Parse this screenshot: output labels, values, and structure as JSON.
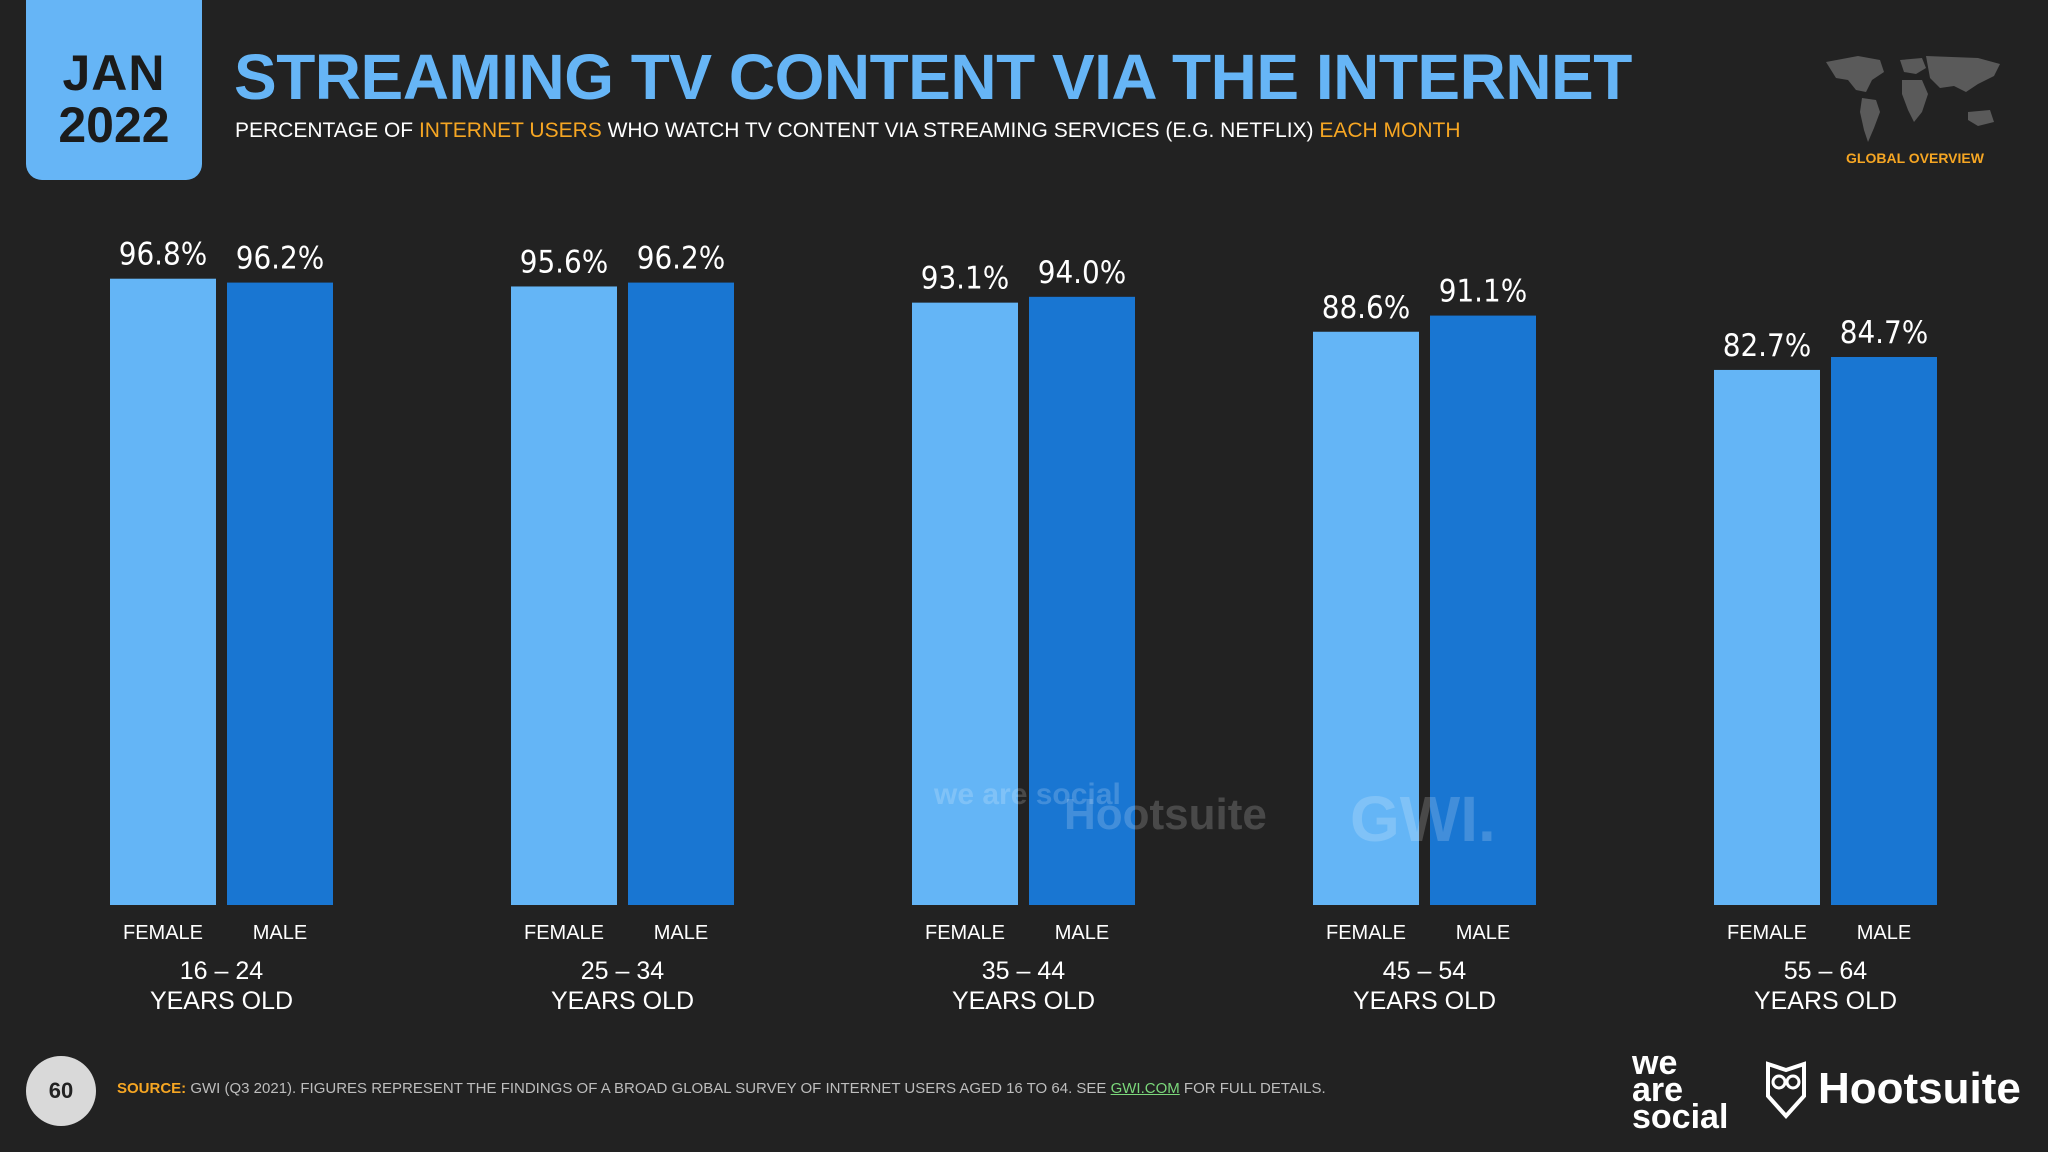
{
  "header": {
    "date_month": "JAN",
    "date_year": "2022",
    "title": "STREAMING TV CONTENT VIA THE INTERNET",
    "subtitle_part1": "PERCENTAGE OF ",
    "subtitle_hl1": "INTERNET USERS",
    "subtitle_part2": " WHO WATCH TV CONTENT VIA STREAMING SERVICES (E.G. NETFLIX) ",
    "subtitle_hl2": "EACH MONTH",
    "region_label": "GLOBAL OVERVIEW"
  },
  "colors": {
    "background": "#222222",
    "female": "#64b5f6",
    "male": "#1976d2",
    "accent": "#f6a623"
  },
  "chart_data": {
    "type": "bar",
    "title": "STREAMING TV CONTENT VIA THE INTERNET",
    "ylabel": "",
    "xlabel": "",
    "ylim": [
      0,
      100
    ],
    "grid": false,
    "categories": [
      "16 – 24|YEARS OLD",
      "25 – 34|YEARS OLD",
      "35 – 44|YEARS OLD",
      "45 – 54|YEARS OLD",
      "55 – 64|YEARS OLD"
    ],
    "series": [
      {
        "name": "FEMALE",
        "values": [
          96.8,
          95.6,
          93.1,
          88.6,
          82.7
        ]
      },
      {
        "name": "MALE",
        "values": [
          96.2,
          96.2,
          94.0,
          91.1,
          84.7
        ]
      }
    ],
    "value_suffix": "%"
  },
  "watermarks": {
    "was": "we are social",
    "hootsuite": "Hootsuite",
    "gwi": "GWI."
  },
  "footer": {
    "page_number": "60",
    "source_label": "SOURCE:",
    "source_text_1": " GWI (Q3 2021). FIGURES REPRESENT THE FINDINGS OF A BROAD GLOBAL SURVEY OF INTERNET USERS AGED 16 TO 64. SEE ",
    "source_link": "GWI.COM",
    "source_text_2": " FOR FULL DETAILS.",
    "brand_was_1": "we",
    "brand_was_2": "are",
    "brand_was_3": "social",
    "brand_hootsuite": "Hootsuite"
  }
}
